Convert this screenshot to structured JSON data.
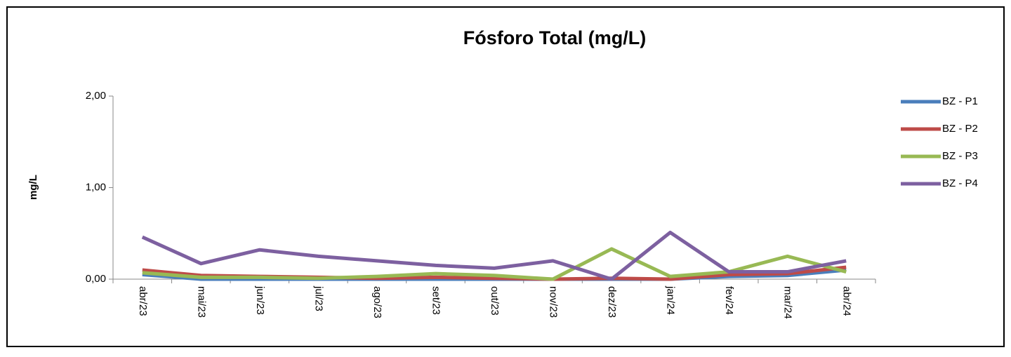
{
  "chart_data": {
    "type": "line",
    "title": "Fósforo Total (mg/L)",
    "y_label": "mg/L",
    "categories": [
      "abr/23",
      "mai/23",
      "jun/23",
      "jul/23",
      "ago/23",
      "set/23",
      "out/23",
      "nov/23",
      "dez/23",
      "jan/24",
      "fev/24",
      "mar/24",
      "abr/24"
    ],
    "series": [
      {
        "name": "BZ - P1",
        "color": "#4a7ebb",
        "values": [
          0.05,
          0.0,
          0.0,
          0.0,
          0.0,
          0.0,
          0.0,
          0.0,
          0.0,
          0.0,
          0.03,
          0.04,
          0.1
        ]
      },
      {
        "name": "BZ - P2",
        "color": "#be4b48",
        "values": [
          0.1,
          0.04,
          0.03,
          0.02,
          0.01,
          0.02,
          0.01,
          0.0,
          0.01,
          0.0,
          0.05,
          0.06,
          0.13
        ]
      },
      {
        "name": "BZ - P3",
        "color": "#98b954",
        "values": [
          0.07,
          0.02,
          0.02,
          0.01,
          0.03,
          0.06,
          0.04,
          0.0,
          0.33,
          0.03,
          0.08,
          0.25,
          0.08
        ]
      },
      {
        "name": "BZ - P4",
        "color": "#7d60a0",
        "values": [
          0.46,
          0.17,
          0.32,
          0.25,
          0.2,
          0.15,
          0.12,
          0.2,
          0.0,
          0.51,
          0.08,
          0.08,
          0.2
        ]
      }
    ],
    "ylim": [
      0,
      2
    ],
    "yticks": [
      {
        "value": 0,
        "label": "0,00"
      },
      {
        "value": 1,
        "label": "1,00"
      },
      {
        "value": 2,
        "label": "2,00"
      }
    ],
    "legend": "right"
  }
}
